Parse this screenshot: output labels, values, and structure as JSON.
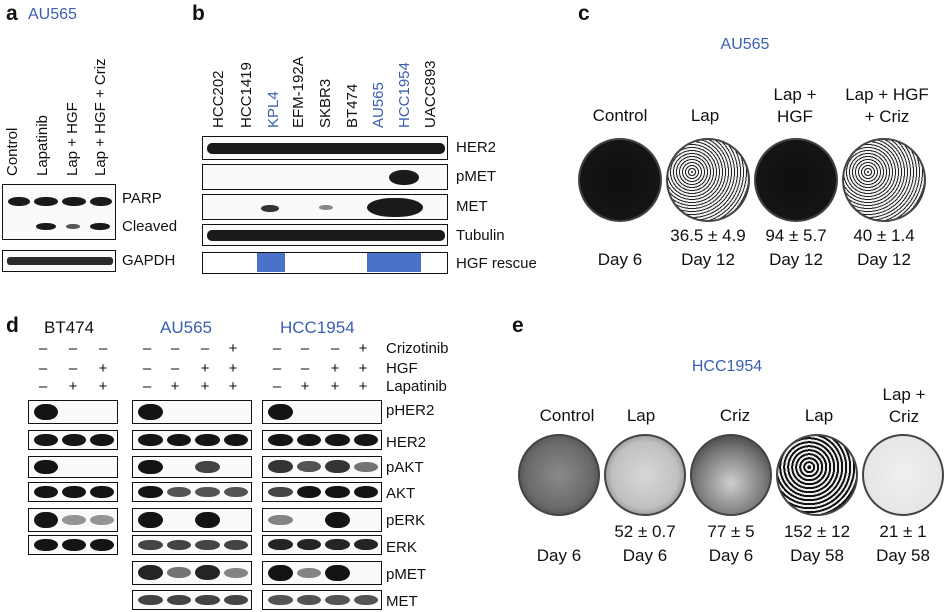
{
  "panel_a": {
    "letter": "a",
    "cell_line": "AU565",
    "lanes": [
      "Control",
      "Lapatinib",
      "Lap + HGF",
      "Lap + HGF + Criz"
    ],
    "rows": [
      "PARP",
      "Cleaved",
      "GAPDH"
    ]
  },
  "panel_b": {
    "letter": "b",
    "cell_lines": [
      "HCC202",
      "HCC1419",
      "KPL4",
      "EFM-192A",
      "SKBR3",
      "BT474",
      "AU565",
      "HCC1954",
      "UACC893"
    ],
    "highlighted": [
      "KPL4",
      "AU565",
      "HCC1954"
    ],
    "rows": [
      "HER2",
      "pMET",
      "MET",
      "Tubulin",
      "HGF rescue"
    ],
    "rescue_lanes": [
      "KPL4",
      "AU565",
      "HCC1954"
    ]
  },
  "panel_c": {
    "letter": "c",
    "cell_line": "AU565",
    "conditions": [
      {
        "label": "Control",
        "value": "",
        "day": "Day 6"
      },
      {
        "label": "Lap",
        "value": "36.5 ± 4.9",
        "day": "Day 12"
      },
      {
        "label": "Lap +\nHGF",
        "value": "94 ± 5.7",
        "day": "Day 12"
      },
      {
        "label": "Lap + HGF\n+ Criz",
        "value": "40 ± 1.4",
        "day": "Day 12"
      }
    ]
  },
  "panel_d": {
    "letter": "d",
    "cell_lines": [
      "BT474",
      "AU565",
      "HCC1954"
    ],
    "treatments": [
      "Crizotinib",
      "HGF",
      "Lapatinib"
    ],
    "signs_bt474": [
      [
        "–",
        "–",
        "–"
      ],
      [
        "–",
        "–",
        "+"
      ],
      [
        "–",
        "+",
        "+"
      ]
    ],
    "signs_4lane": [
      [
        "–",
        "–",
        "–",
        "+"
      ],
      [
        "–",
        "–",
        "+",
        "+"
      ],
      [
        "–",
        "+",
        "+",
        "+"
      ]
    ],
    "rows": [
      "pHER2",
      "HER2",
      "pAKT",
      "AKT",
      "pERK",
      "ERK",
      "pMET",
      "MET"
    ]
  },
  "panel_e": {
    "letter": "e",
    "cell_line": "HCC1954",
    "conditions": [
      {
        "label": "Control",
        "value": "",
        "day": "Day 6"
      },
      {
        "label": "Lap",
        "value": "52 ± 0.7",
        "day": "Day 6"
      },
      {
        "label": "Criz",
        "value": "77 ± 5",
        "day": "Day 6"
      },
      {
        "label": "Lap",
        "value": "152 ± 12",
        "day": "Day 58"
      },
      {
        "label": "Lap +\nCriz",
        "value": "21 ± 1",
        "day": "Day 58"
      }
    ]
  },
  "colors": {
    "accent_blue": "#3a5fb0",
    "rescue_blue": "#4a72c8",
    "band": "#1a1a1a"
  }
}
